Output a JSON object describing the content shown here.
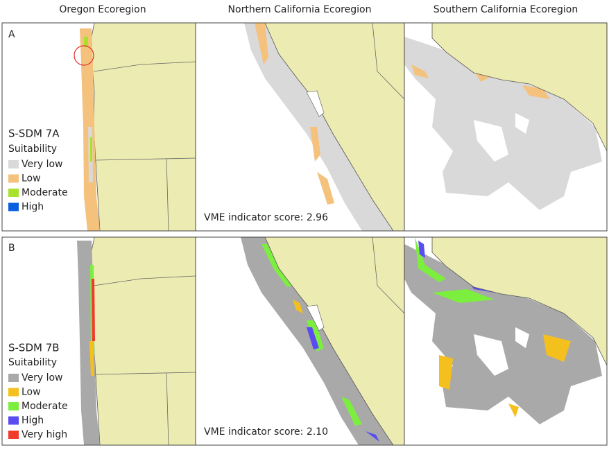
{
  "columns": [
    "Oregon Ecoregion",
    "Northern California Ecoregion",
    "Southern California Ecoregion"
  ],
  "panels": [
    {
      "label": "A",
      "legend_title": "S-SDM 7A",
      "legend_subtitle": "Suitability",
      "score_text": "VME indicator score: 2.96",
      "legend": [
        {
          "label": "Very low",
          "color": "#d9d9d9"
        },
        {
          "label": "Low",
          "color": "#f4c27c"
        },
        {
          "label": "Moderate",
          "color": "#a8e22c"
        },
        {
          "label": "High",
          "color": "#0a5ee0"
        }
      ]
    },
    {
      "label": "B",
      "legend_title": "S-SDM 7B",
      "legend_subtitle": "Suitability",
      "score_text": "VME indicator score: 2.10",
      "legend": [
        {
          "label": "Very low",
          "color": "#a9a9a9"
        },
        {
          "label": "Low",
          "color": "#f4c01e"
        },
        {
          "label": "Moderate",
          "color": "#7cef3e"
        },
        {
          "label": "High",
          "color": "#5a4cf0"
        },
        {
          "label": "Very high",
          "color": "#f03a2a"
        }
      ]
    }
  ]
}
